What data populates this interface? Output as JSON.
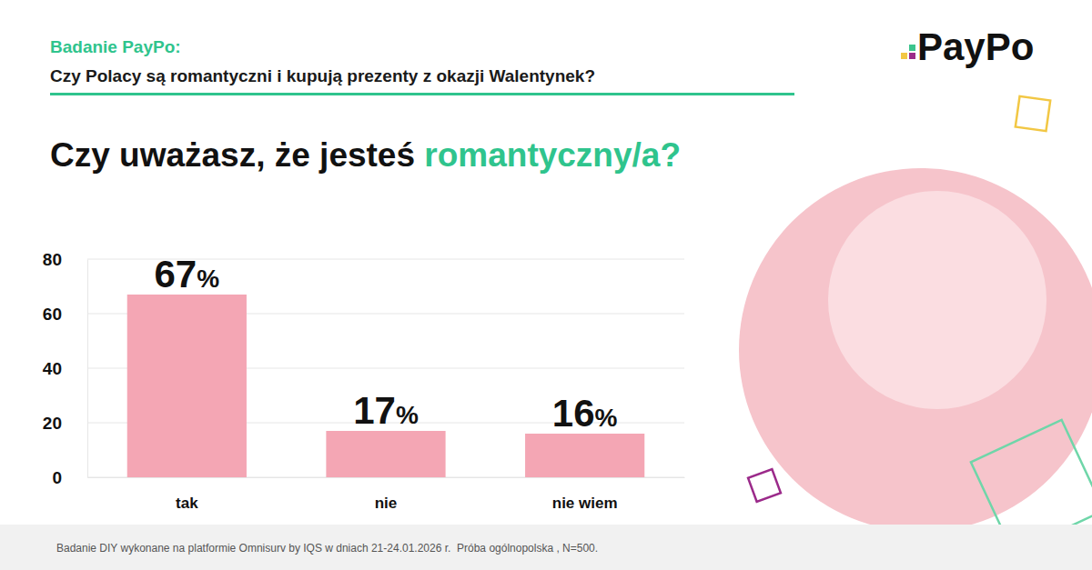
{
  "header": {
    "label": "Badanie PayPo:",
    "title": "Czy Polacy są romantyczni i kupują prezenty z okazji Walentynek?"
  },
  "logo": "PayPo",
  "footer": "Badanie DIY wykonane na platformie Omnisurv by IQS w dniach 21-24.01.2026 r.  Próba ogólnopolska , N=500.",
  "chart_data": {
    "type": "bar",
    "title": "Czy uważasz, że jesteś romantyczny/a?",
    "categories": [
      "tak",
      "nie",
      "nie wiem"
    ],
    "values": [
      67,
      17,
      16
    ],
    "value_labels": [
      "67%",
      "17%",
      "16%"
    ],
    "color": "#f4a6b4",
    "ylim": [
      0,
      80
    ],
    "yticks": [
      0,
      20,
      40,
      60,
      80
    ],
    "grid": true,
    "data_labels": true
  }
}
